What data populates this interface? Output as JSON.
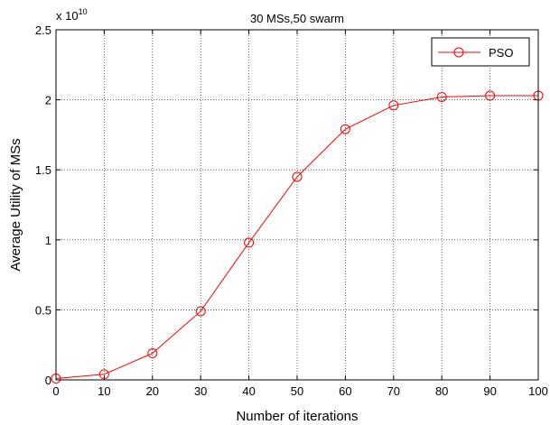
{
  "chart_data": {
    "type": "line",
    "title": "30 MSs,50 swarm",
    "xlabel": "Number of iterations",
    "ylabel": "Average Utility of MSs",
    "y_exponent_label": "x 10",
    "y_exponent_power": "10",
    "xlim": [
      0,
      100
    ],
    "ylim": [
      0,
      2.5
    ],
    "xticks": [
      0,
      10,
      20,
      30,
      40,
      50,
      60,
      70,
      80,
      90,
      100
    ],
    "yticks": [
      0,
      0.5,
      1,
      1.5,
      2,
      2.5
    ],
    "ytick_labels": [
      "0",
      "0.5",
      "1",
      "1.5",
      "2",
      "2.5"
    ],
    "grid": true,
    "legend_position": "top-right",
    "series": [
      {
        "name": "PSO",
        "color": "#ff0000",
        "marker": "circle",
        "x": [
          0,
          10,
          20,
          30,
          40,
          50,
          60,
          70,
          80,
          90,
          100
        ],
        "y": [
          0.01,
          0.04,
          0.19,
          0.49,
          0.98,
          1.45,
          1.79,
          1.96,
          2.02,
          2.03,
          2.03
        ]
      }
    ]
  }
}
